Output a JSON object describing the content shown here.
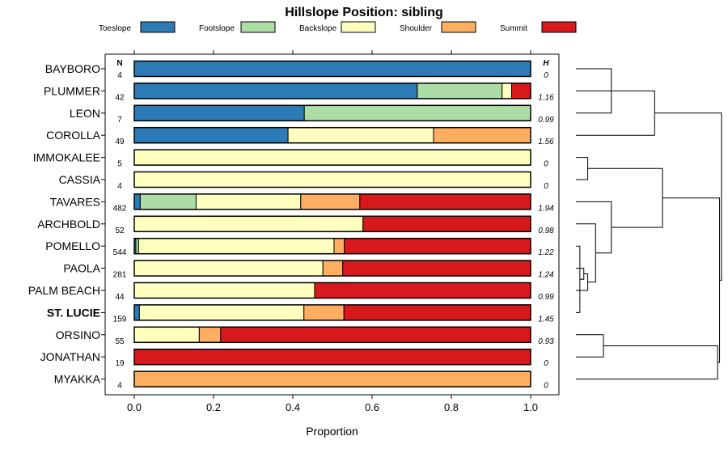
{
  "chart_data": {
    "type": "bar",
    "orientation": "horizontal",
    "stacked": true,
    "title": "Hillslope Position: sibling",
    "xlabel": "Proportion",
    "ylabel": "",
    "xlim": [
      0,
      1
    ],
    "x_ticks": [
      "0.0",
      "0.2",
      "0.4",
      "0.6",
      "0.8",
      "1.0"
    ],
    "n_header": "N",
    "h_header": "H",
    "highlight": "ST. LUCIE",
    "legend": [
      {
        "name": "Toeslope",
        "color": "#2c7bb6"
      },
      {
        "name": "Footslope",
        "color": "#abdda4"
      },
      {
        "name": "Backslope",
        "color": "#ffffbf"
      },
      {
        "name": "Shoulder",
        "color": "#fdae61"
      },
      {
        "name": "Summit",
        "color": "#d7191c"
      }
    ],
    "categories": [
      "BAYBORO",
      "PLUMMER",
      "LEON",
      "COROLLA",
      "IMMOKALEE",
      "CASSIA",
      "TAVARES",
      "ARCHBOLD",
      "POMELLO",
      "PAOLA",
      "PALM BEACH",
      "ST. LUCIE",
      "ORSINO",
      "JONATHAN",
      "MYAKKA"
    ],
    "n": [
      "4",
      "42",
      "7",
      "49",
      "5",
      "4",
      "482",
      "52",
      "544",
      "281",
      "44",
      "159",
      "55",
      "19",
      "4"
    ],
    "h": [
      "0",
      "1.16",
      "0.99",
      "1.56",
      "0",
      "0",
      "1.94",
      "0.98",
      "1.22",
      "1.24",
      "0.99",
      "1.45",
      "0.93",
      "0",
      "0"
    ],
    "series": [
      {
        "name": "Toeslope",
        "values": [
          1.0,
          0.714,
          0.429,
          0.388,
          0,
          0,
          0.015,
          0,
          0.004,
          0,
          0,
          0.013,
          0,
          0,
          0
        ]
      },
      {
        "name": "Footslope",
        "values": [
          0,
          0.214,
          0.571,
          0,
          0,
          0,
          0.141,
          0,
          0.007,
          0,
          0,
          0,
          0,
          0,
          0
        ]
      },
      {
        "name": "Backslope",
        "values": [
          0,
          0.024,
          0,
          0.367,
          1.0,
          1.0,
          0.264,
          0.577,
          0.493,
          0.476,
          0.455,
          0.415,
          0.164,
          0,
          0
        ]
      },
      {
        "name": "Shoulder",
        "values": [
          0,
          0,
          0,
          0.245,
          0,
          0,
          0.149,
          0,
          0.026,
          0.05,
          0,
          0.101,
          0.054,
          0,
          1.0
        ]
      },
      {
        "name": "Summit",
        "values": [
          0,
          0.048,
          0,
          0,
          0,
          0,
          0.431,
          0.423,
          0.47,
          0.474,
          0.545,
          0.471,
          0.782,
          1.0,
          0
        ]
      }
    ],
    "dendrogram": {
      "merges": [
        [
          -1,
          -3,
          0.18
        ],
        [
          -5,
          -6,
          0.06
        ],
        [
          -9,
          -12,
          0.02
        ],
        [
          -10,
          3,
          0.04
        ],
        [
          -11,
          4,
          0.06
        ],
        [
          -13,
          -14,
          0.14
        ],
        [
          -8,
          5,
          0.1
        ],
        [
          -7,
          7,
          0.18
        ],
        [
          1,
          -2,
          0.22
        ],
        [
          9,
          -4,
          0.4
        ],
        [
          2,
          8,
          0.44
        ],
        [
          6,
          -15,
          0.72
        ],
        [
          11,
          12,
          0.73
        ],
        [
          10,
          13,
          0.74
        ]
      ],
      "max_height": 0.74
    }
  }
}
